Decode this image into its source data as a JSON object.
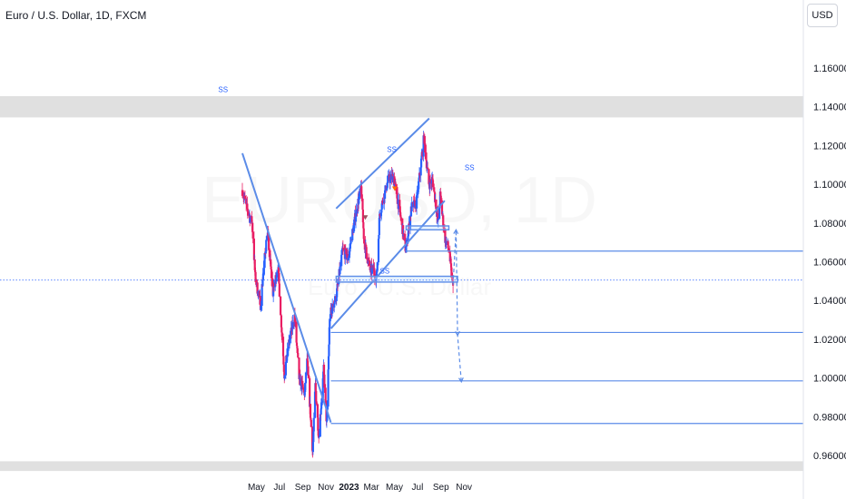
{
  "header": {
    "title": "Euro / U.S. Dollar, 1D, FXCM",
    "currency_button": "USD"
  },
  "watermark": {
    "symbol": "EURUSD, 1D",
    "name": "Euro / U.S. Dollar"
  },
  "colors": {
    "up": "#2962ff",
    "down": "#e91e63",
    "trendline": "#5b8ce8",
    "zone_fill": "#d8d8d8"
  },
  "chart_data": {
    "type": "candlestick",
    "title": "",
    "xlabel": "",
    "ylabel": "",
    "ylim": [
      0.952,
      1.171
    ],
    "y_ticks": [
      "0.96000",
      "0.98000",
      "1.00000",
      "1.02000",
      "1.04000",
      "1.06000",
      "1.08000",
      "1.10000",
      "1.12000",
      "1.14000",
      "1.16000"
    ],
    "x_tick_labels": [
      {
        "label": "May",
        "date": "2022-05-01",
        "bold": false
      },
      {
        "label": "Jul",
        "date": "2022-07-01",
        "bold": false
      },
      {
        "label": "Sep",
        "date": "2022-09-01",
        "bold": false
      },
      {
        "label": "Nov",
        "date": "2022-11-01",
        "bold": false
      },
      {
        "label": "2023",
        "date": "2023-01-01",
        "bold": true
      },
      {
        "label": "Mar",
        "date": "2023-03-01",
        "bold": false
      },
      {
        "label": "May",
        "date": "2023-05-01",
        "bold": false
      },
      {
        "label": "Jul",
        "date": "2023-07-01",
        "bold": false
      },
      {
        "label": "Sep",
        "date": "2023-09-01",
        "bold": false
      },
      {
        "label": "Nov",
        "date": "2023-11-01",
        "bold": false
      }
    ],
    "price_anchors": [
      [
        "2022-03-25",
        1.097
      ],
      [
        "2022-04-05",
        1.088
      ],
      [
        "2022-04-20",
        1.08
      ],
      [
        "2022-04-28",
        1.052
      ],
      [
        "2022-05-12",
        1.038
      ],
      [
        "2022-05-20",
        1.056
      ],
      [
        "2022-05-30",
        1.076
      ],
      [
        "2022-06-14",
        1.044
      ],
      [
        "2022-06-27",
        1.058
      ],
      [
        "2022-07-14",
        1.002
      ],
      [
        "2022-07-26",
        1.018
      ],
      [
        "2022-08-10",
        1.032
      ],
      [
        "2022-08-22",
        1.0
      ],
      [
        "2022-09-06",
        0.992
      ],
      [
        "2022-09-12",
        1.01
      ],
      [
        "2022-09-27",
        0.962
      ],
      [
        "2022-10-04",
        0.996
      ],
      [
        "2022-10-13",
        0.97
      ],
      [
        "2022-10-26",
        1.004
      ],
      [
        "2022-11-03",
        0.976
      ],
      [
        "2022-11-11",
        1.032
      ],
      [
        "2022-11-28",
        1.042
      ],
      [
        "2022-12-15",
        1.066
      ],
      [
        "2022-12-29",
        1.062
      ],
      [
        "2023-01-26",
        1.092
      ],
      [
        "2023-02-02",
        1.098
      ],
      [
        "2023-02-10",
        1.07
      ],
      [
        "2023-02-27",
        1.055
      ],
      [
        "2023-03-07",
        1.056
      ],
      [
        "2023-03-15",
        1.052
      ],
      [
        "2023-03-23",
        1.085
      ],
      [
        "2023-04-14",
        1.102
      ],
      [
        "2023-04-28",
        1.104
      ],
      [
        "2023-05-15",
        1.086
      ],
      [
        "2023-05-31",
        1.066
      ],
      [
        "2023-06-15",
        1.088
      ],
      [
        "2023-06-28",
        1.09
      ],
      [
        "2023-07-18",
        1.124
      ],
      [
        "2023-07-31",
        1.1
      ],
      [
        "2023-08-10",
        1.102
      ],
      [
        "2023-08-25",
        1.08
      ],
      [
        "2023-08-30",
        1.094
      ],
      [
        "2023-09-12",
        1.072
      ],
      [
        "2023-09-22",
        1.066
      ],
      [
        "2023-10-03",
        1.046
      ]
    ],
    "current_price": 1.0505,
    "markers": [
      {
        "date": "2023-02-13",
        "price": 1.0826,
        "shape": "triangle-down",
        "color": "#a05060"
      },
      {
        "date": "2023-05-02",
        "price": 1.0975,
        "shape": "triangle-down",
        "color": "#ff6d00"
      }
    ],
    "zones": [
      {
        "y1": 1.1455,
        "y2": 1.1345
      },
      {
        "y1": 0.957,
        "y2": 0.952
      }
    ],
    "trendlines": [
      {
        "p1": [
          "2022-03-25",
          1.116
        ],
        "p2": [
          "2022-11-14",
          0.977
        ],
        "label": "SS"
      },
      {
        "p1": [
          "2022-11-14",
          1.0255
        ],
        "p2": [
          "2023-09-11",
          1.0915
        ],
        "label": "SS"
      },
      {
        "p1": [
          "2022-11-28",
          1.0875
        ],
        "p2": [
          "2023-08-01",
          1.134
        ],
        "label": "SS"
      }
    ],
    "boxes": [
      {
        "x1": "2022-11-28",
        "x2": "2023-10-15",
        "y1": 1.0525,
        "y2": 1.0495,
        "label": "SS"
      },
      {
        "x1": "2023-06-01",
        "x2": "2023-09-22",
        "y1": 1.0785,
        "y2": 1.0765,
        "label": ""
      }
    ],
    "levels": [
      {
        "price": 1.0655,
        "from": "2023-05-30"
      },
      {
        "price": 1.0235,
        "from": "2022-11-14"
      },
      {
        "price": 0.9985,
        "from": "2022-11-14"
      },
      {
        "price": 0.9765,
        "from": "2022-11-14"
      }
    ],
    "projection": [
      [
        "2023-10-03",
        1.048
      ],
      [
        "2023-10-11",
        1.0765
      ],
      [
        "2023-10-15",
        1.022
      ],
      [
        "2023-10-25",
        0.998
      ]
    ]
  }
}
